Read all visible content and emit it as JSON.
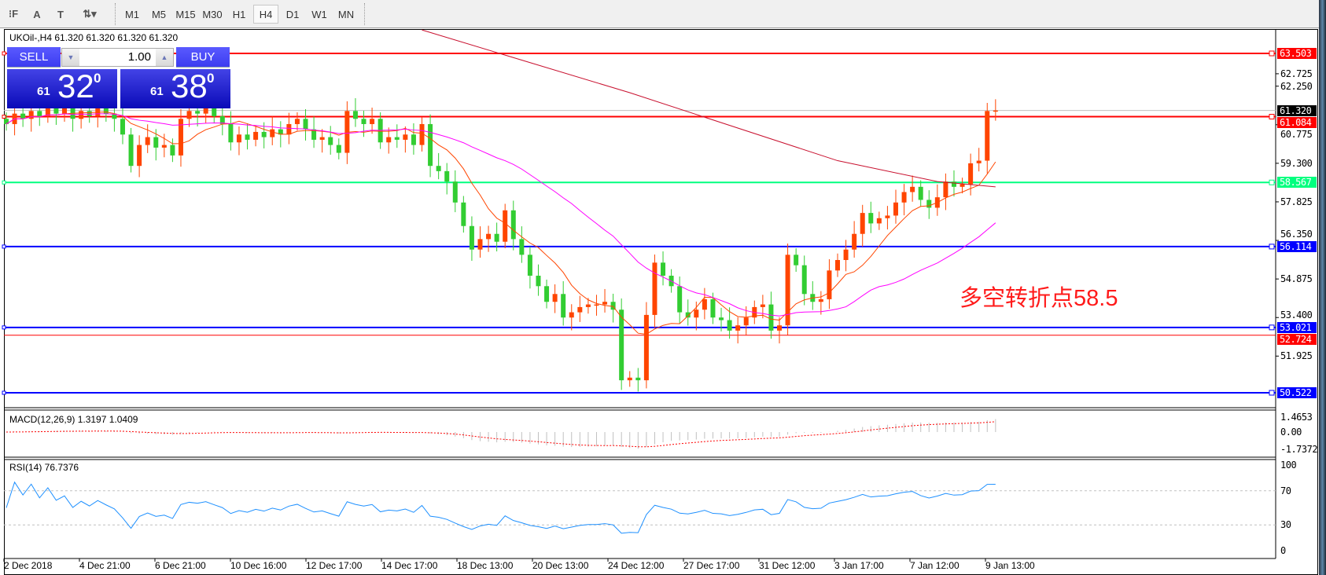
{
  "toolbar": {
    "tools": [
      {
        "name": "fibo-icon",
        "glyph": "⁝F"
      },
      {
        "name": "text-icon",
        "glyph": "A"
      },
      {
        "name": "text-label-icon",
        "glyph": "T"
      },
      {
        "name": "arrows-icon",
        "glyph": "⇅▾"
      }
    ],
    "timeframes": [
      "M1",
      "M5",
      "M15",
      "M30",
      "H1",
      "H4",
      "D1",
      "W1",
      "MN"
    ],
    "active_timeframe": "H4"
  },
  "chart": {
    "symbol_line": "UKOil-,H4  61.320 61.320 61.320 61.320",
    "annotation": "多空转折点58.5"
  },
  "trade_panel": {
    "sell_label": "SELL",
    "buy_label": "BUY",
    "lot": "1.00",
    "sell_small": "61",
    "sell_big": "32",
    "sell_pip": "0",
    "buy_small": "61",
    "buy_big": "38",
    "buy_pip": "0"
  },
  "price_axis": [
    "62.725",
    "62.250",
    "60.775",
    "59.300",
    "57.825",
    "56.350",
    "54.875",
    "53.400",
    "51.925"
  ],
  "levels": [
    {
      "price": 63.503,
      "label": "63.503",
      "color": "#ff0000"
    },
    {
      "price": 61.32,
      "label": "61.320",
      "color": "#000000",
      "line": "#c0c0c0"
    },
    {
      "price": 61.084,
      "label": "61.084",
      "color": "#ff0000"
    },
    {
      "price": 58.567,
      "label": "58.567",
      "color": "#00ff7f"
    },
    {
      "price": 56.114,
      "label": "56.114",
      "color": "#0000ff"
    },
    {
      "price": 53.021,
      "label": "53.021",
      "color": "#0000ff"
    },
    {
      "price": 52.724,
      "label": "52.724",
      "color": "#ff0000"
    },
    {
      "price": 50.522,
      "label": "50.522",
      "color": "#0000ff"
    }
  ],
  "macd": {
    "label": "MACD(12,26,9) 1.3197 1.0409",
    "axis": [
      "1.4653",
      "0.00",
      "-1.7372"
    ]
  },
  "rsi": {
    "label": "RSI(14) 76.7376",
    "axis": [
      "100",
      "70",
      "30",
      "0"
    ]
  },
  "dates": [
    "2 Dec 2018",
    "4 Dec 21:00",
    "6 Dec 21:00",
    "10 Dec 16:00",
    "12 Dec 17:00",
    "14 Dec 17:00",
    "18 Dec 13:00",
    "20 Dec 13:00",
    "24 Dec 12:00",
    "27 Dec 17:00",
    "31 Dec 12:00",
    "3 Jan 17:00",
    "7 Jan 12:00",
    "9 Jan 13:00"
  ],
  "colors": {
    "bull": "#ff4500",
    "bear": "#32cd32",
    "ma_fast": "#ff4500",
    "ma_mid": "#ff00ff",
    "ma_slow": "#c8102e",
    "macd_hist": "#c0c0c0",
    "macd_signal": "#ff0000",
    "rsi": "#1e90ff"
  },
  "chart_data": {
    "type": "candlestick",
    "symbol": "UKOil-",
    "timeframe": "H4",
    "ylim": [
      50.3,
      63.9
    ],
    "closes": [
      60.8,
      61.2,
      61.0,
      61.3,
      61.1,
      61.5,
      61.2,
      61.4,
      61.0,
      61.3,
      61.1,
      61.4,
      61.2,
      61.0,
      60.4,
      59.2,
      60.0,
      60.3,
      59.9,
      60.0,
      59.6,
      61.0,
      61.3,
      61.2,
      61.4,
      61.1,
      60.8,
      60.1,
      60.4,
      60.2,
      60.5,
      60.3,
      60.6,
      60.4,
      60.8,
      61.0,
      60.6,
      60.2,
      60.3,
      60.0,
      59.7,
      61.3,
      61.0,
      60.8,
      61.0,
      60.1,
      60.3,
      60.2,
      60.4,
      60.0,
      60.8,
      59.2,
      59.0,
      58.6,
      57.8,
      56.9,
      56.0,
      56.4,
      56.6,
      56.3,
      57.5,
      56.4,
      55.8,
      55.0,
      54.6,
      54.0,
      54.3,
      53.4,
      53.6,
      53.8,
      53.9,
      53.9,
      54.0,
      53.7,
      51.0,
      51.1,
      51.0,
      53.5,
      55.5,
      55.0,
      54.6,
      53.6,
      53.4,
      53.7,
      54.1,
      53.4,
      53.3,
      52.9,
      53.1,
      53.4,
      53.8,
      53.9,
      52.9,
      53.1,
      55.8,
      55.4,
      54.3,
      54.0,
      54.1,
      55.2,
      55.6,
      56.0,
      56.6,
      57.4,
      57.0,
      57.2,
      57.3,
      57.8,
      58.2,
      58.4,
      57.9,
      57.6,
      58.0,
      58.6,
      58.4,
      58.5,
      59.3,
      59.4,
      61.3,
      61.32
    ],
    "ma_slow_points": [
      [
        50,
        64.4
      ],
      [
        75,
        62.0
      ],
      [
        100,
        59.4
      ],
      [
        112,
        58.6
      ],
      [
        119,
        58.4
      ]
    ]
  }
}
